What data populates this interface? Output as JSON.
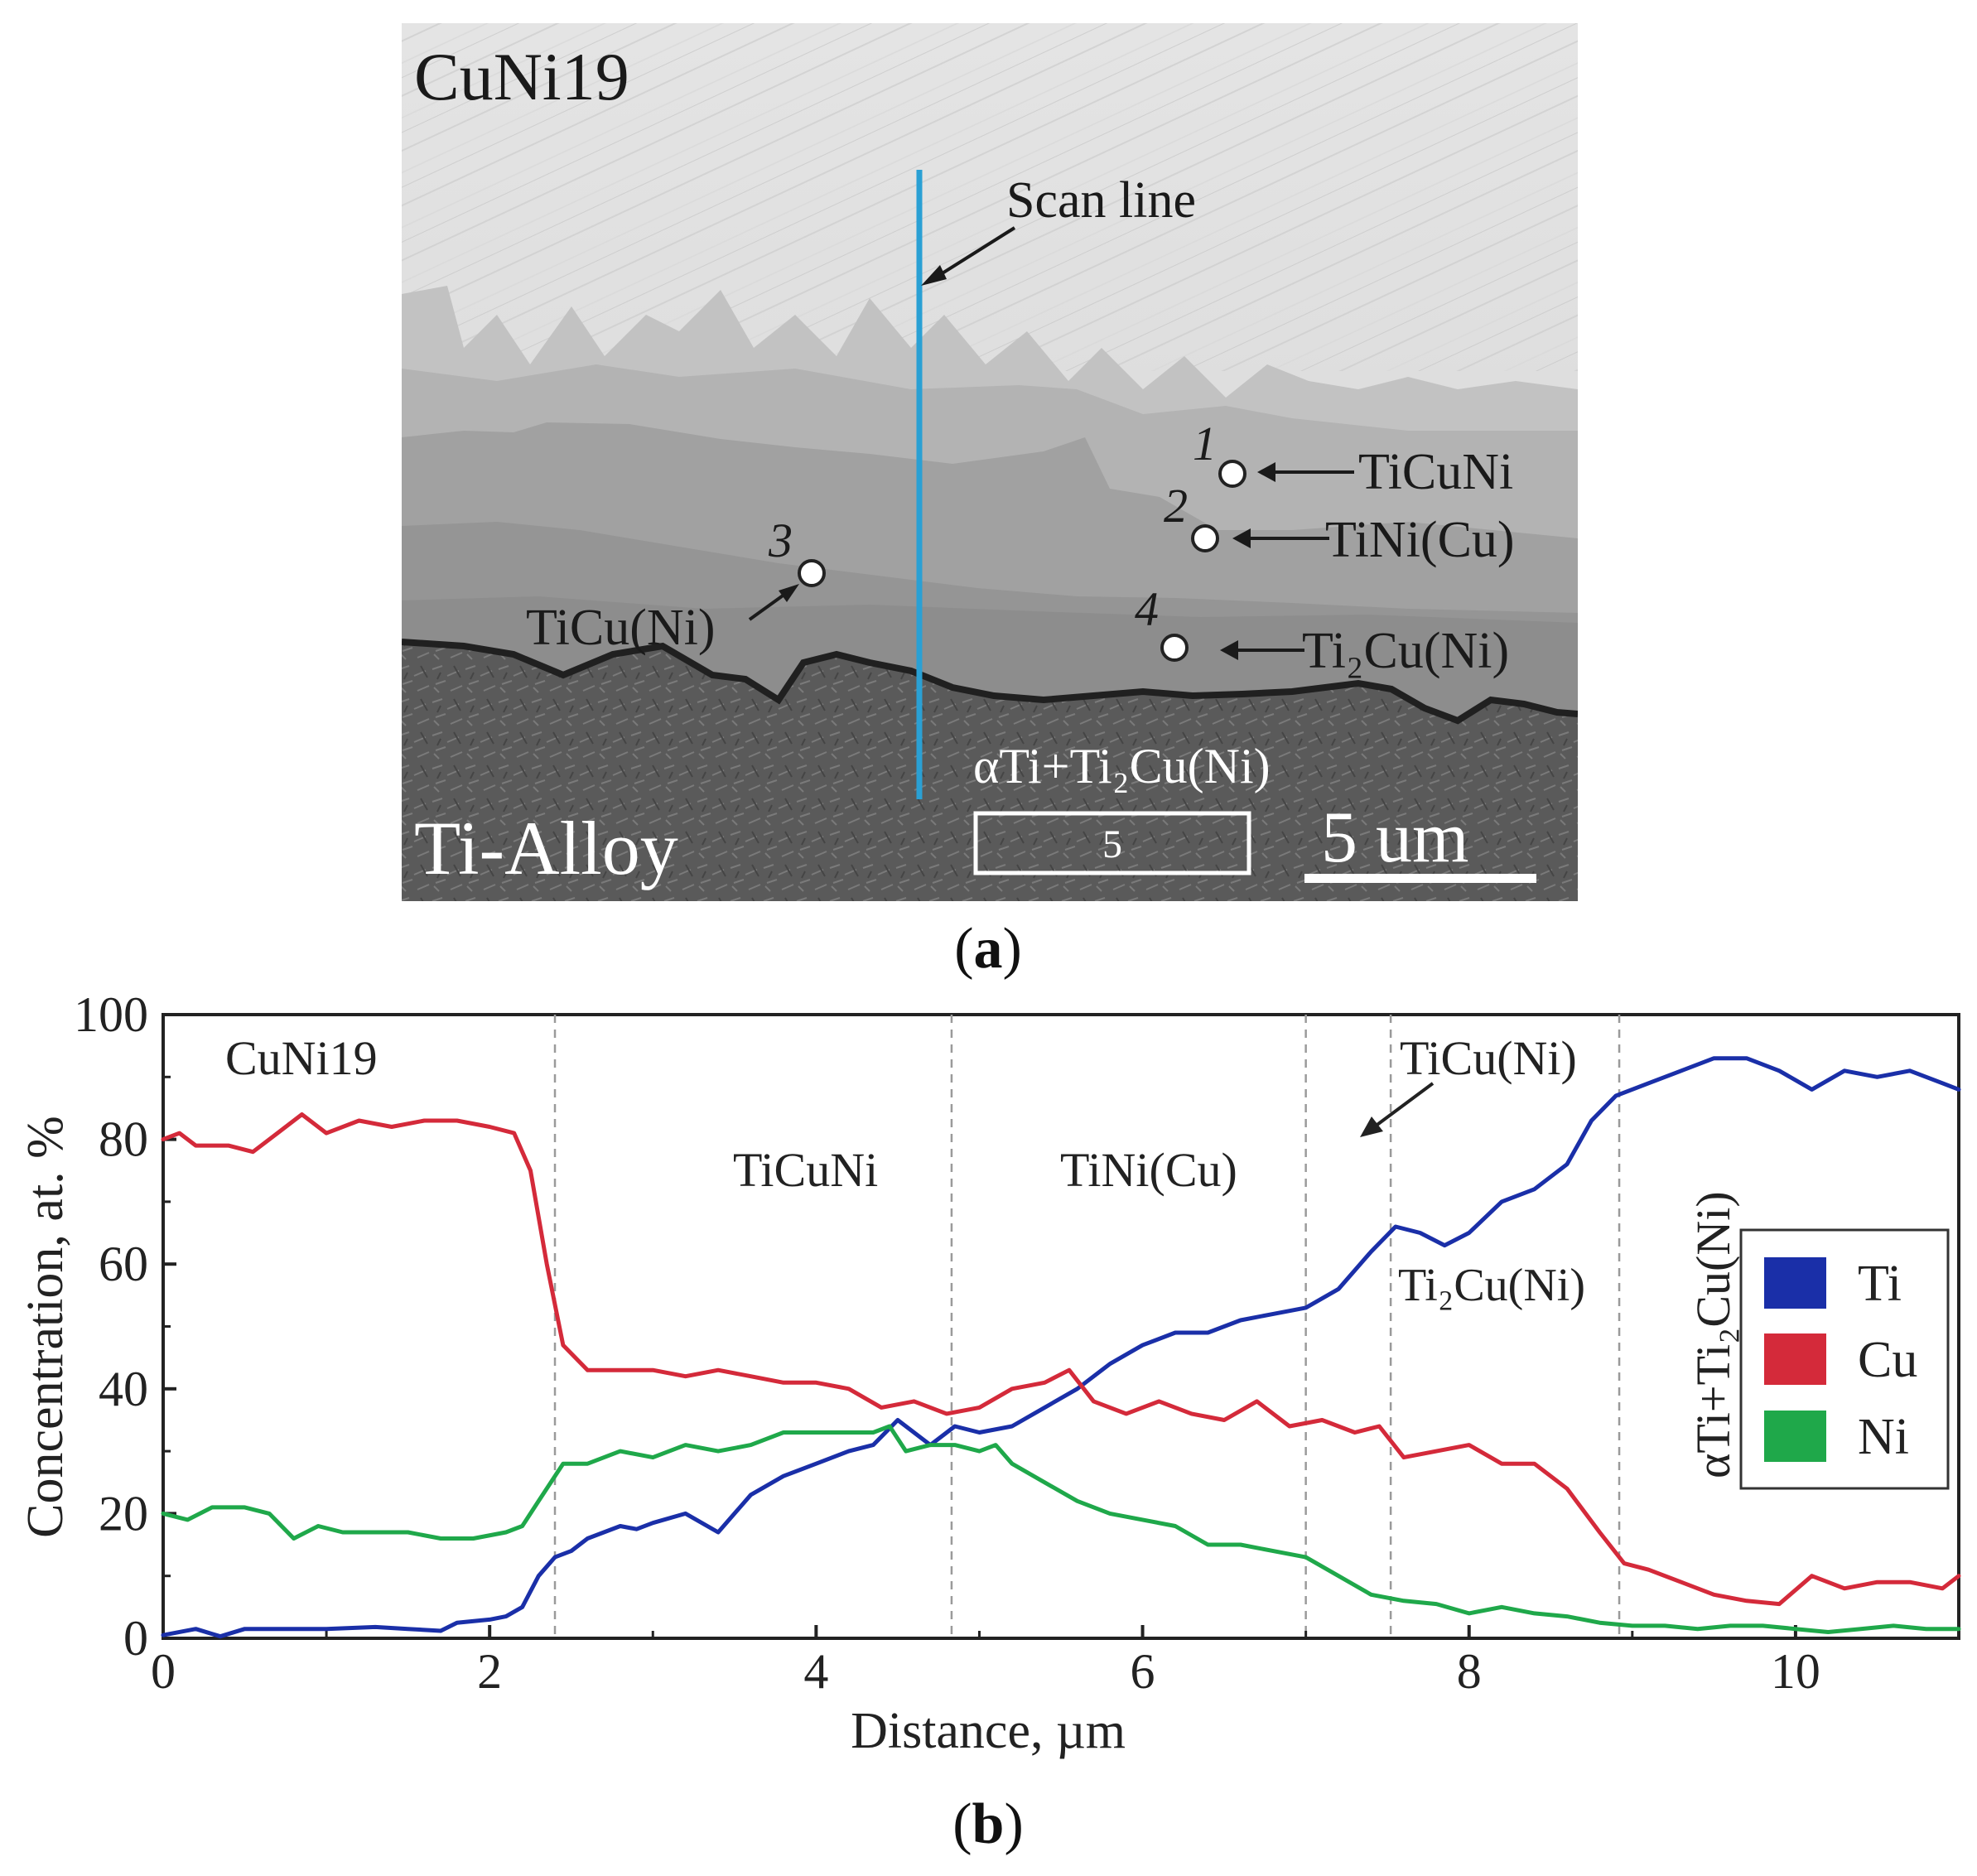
{
  "panel_a": {
    "caption": "a",
    "sample_top_label": "CuNi19",
    "sample_bottom_label": "Ti-Alloy",
    "scan_line_label": "Scan line",
    "points": [
      {
        "num": "1",
        "phase": "TiCuNi"
      },
      {
        "num": "2",
        "phase": "TiNi(Cu)"
      },
      {
        "num": "3",
        "phase": "TiCu(Ni)"
      },
      {
        "num": "4",
        "phase": "Ti₂Cu(Ni)"
      }
    ],
    "zone5_phase": "αTi+Ti₂Cu(Ni)",
    "zone5_num": "5",
    "scale_bar_label": "5 um",
    "colors": {
      "scan_line": "#2aa0d4",
      "marker": "#ffffff"
    }
  },
  "panel_b": {
    "caption": "b"
  },
  "chart_data": {
    "type": "line",
    "title": "",
    "xlabel": "Distance, µm",
    "ylabel": "Concentration, at. %",
    "xlim": [
      0,
      11
    ],
    "ylim": [
      0,
      100
    ],
    "xticks": [
      0,
      2,
      4,
      6,
      8,
      10
    ],
    "yticks": [
      0,
      20,
      40,
      60,
      80,
      100
    ],
    "boundaries": [
      2.4,
      4.83,
      7.0,
      7.52,
      8.92
    ],
    "region_labels": [
      "CuNi19",
      "TiCuNi",
      "TiNi(Cu)",
      "TiCu(Ni)",
      "Ti₂Cu(Ni)",
      "αTi+Ti₂Cu(Ni)"
    ],
    "legend": {
      "position": "right",
      "entries": [
        "Ti",
        "Cu",
        "Ni"
      ]
    },
    "series": [
      {
        "name": "Ti",
        "color": "#1a2fa8",
        "points": [
          [
            0,
            0.5
          ],
          [
            0.2,
            1.5
          ],
          [
            0.35,
            0.3
          ],
          [
            0.5,
            1.5
          ],
          [
            0.8,
            1.5
          ],
          [
            1.0,
            1.5
          ],
          [
            1.3,
            1.8
          ],
          [
            1.5,
            1.5
          ],
          [
            1.7,
            1.2
          ],
          [
            1.8,
            2.5
          ],
          [
            2.0,
            3.0
          ],
          [
            2.1,
            3.5
          ],
          [
            2.2,
            5
          ],
          [
            2.3,
            10
          ],
          [
            2.4,
            13
          ],
          [
            2.5,
            14
          ],
          [
            2.6,
            16
          ],
          [
            2.8,
            18
          ],
          [
            2.9,
            17.5
          ],
          [
            3.0,
            18.5
          ],
          [
            3.2,
            20
          ],
          [
            3.4,
            17
          ],
          [
            3.6,
            23
          ],
          [
            3.8,
            26
          ],
          [
            4.0,
            28
          ],
          [
            4.2,
            30
          ],
          [
            4.35,
            31
          ],
          [
            4.5,
            35
          ],
          [
            4.7,
            31
          ],
          [
            4.85,
            34
          ],
          [
            5.0,
            33
          ],
          [
            5.2,
            34
          ],
          [
            5.4,
            37
          ],
          [
            5.6,
            40
          ],
          [
            5.8,
            44
          ],
          [
            6.0,
            47
          ],
          [
            6.2,
            49
          ],
          [
            6.4,
            49
          ],
          [
            6.6,
            51
          ],
          [
            6.8,
            52
          ],
          [
            7.0,
            53
          ],
          [
            7.2,
            56
          ],
          [
            7.4,
            62
          ],
          [
            7.55,
            66
          ],
          [
            7.7,
            65
          ],
          [
            7.85,
            63
          ],
          [
            8.0,
            65
          ],
          [
            8.2,
            70
          ],
          [
            8.4,
            72
          ],
          [
            8.6,
            76
          ],
          [
            8.75,
            83
          ],
          [
            8.9,
            87
          ],
          [
            9.1,
            89
          ],
          [
            9.3,
            91
          ],
          [
            9.5,
            93
          ],
          [
            9.7,
            93
          ],
          [
            9.9,
            91
          ],
          [
            10.1,
            88
          ],
          [
            10.3,
            91
          ],
          [
            10.5,
            90
          ],
          [
            10.7,
            91
          ],
          [
            10.9,
            89
          ],
          [
            11.0,
            88
          ]
        ]
      },
      {
        "name": "Cu",
        "color": "#d42a3a",
        "points": [
          [
            0,
            80
          ],
          [
            0.1,
            81
          ],
          [
            0.2,
            79
          ],
          [
            0.4,
            79
          ],
          [
            0.55,
            78
          ],
          [
            0.7,
            81
          ],
          [
            0.85,
            84
          ],
          [
            1.0,
            81
          ],
          [
            1.2,
            83
          ],
          [
            1.4,
            82
          ],
          [
            1.6,
            83
          ],
          [
            1.8,
            83
          ],
          [
            2.0,
            82
          ],
          [
            2.15,
            81
          ],
          [
            2.25,
            75
          ],
          [
            2.35,
            60
          ],
          [
            2.45,
            47
          ],
          [
            2.6,
            43
          ],
          [
            2.8,
            43
          ],
          [
            3.0,
            43
          ],
          [
            3.2,
            42
          ],
          [
            3.4,
            43
          ],
          [
            3.6,
            42
          ],
          [
            3.8,
            41
          ],
          [
            4.0,
            41
          ],
          [
            4.2,
            40
          ],
          [
            4.4,
            37
          ],
          [
            4.6,
            38
          ],
          [
            4.8,
            36
          ],
          [
            5.0,
            37
          ],
          [
            5.2,
            40
          ],
          [
            5.4,
            41
          ],
          [
            5.55,
            43
          ],
          [
            5.7,
            38
          ],
          [
            5.9,
            36
          ],
          [
            6.1,
            38
          ],
          [
            6.3,
            36
          ],
          [
            6.5,
            35
          ],
          [
            6.7,
            38
          ],
          [
            6.9,
            34
          ],
          [
            7.1,
            35
          ],
          [
            7.3,
            33
          ],
          [
            7.45,
            34
          ],
          [
            7.6,
            29
          ],
          [
            7.8,
            30
          ],
          [
            8.0,
            31
          ],
          [
            8.2,
            28
          ],
          [
            8.4,
            28
          ],
          [
            8.6,
            24
          ],
          [
            8.8,
            17
          ],
          [
            8.95,
            12
          ],
          [
            9.1,
            11
          ],
          [
            9.3,
            9
          ],
          [
            9.5,
            7
          ],
          [
            9.7,
            6
          ],
          [
            9.9,
            5.5
          ],
          [
            10.1,
            10
          ],
          [
            10.3,
            8
          ],
          [
            10.5,
            9
          ],
          [
            10.7,
            9
          ],
          [
            10.9,
            8
          ],
          [
            11.0,
            10
          ]
        ]
      },
      {
        "name": "Ni",
        "color": "#1fa84a",
        "points": [
          [
            0,
            20
          ],
          [
            0.15,
            19
          ],
          [
            0.3,
            21
          ],
          [
            0.5,
            21
          ],
          [
            0.65,
            20
          ],
          [
            0.8,
            16
          ],
          [
            0.95,
            18
          ],
          [
            1.1,
            17
          ],
          [
            1.3,
            17
          ],
          [
            1.5,
            17
          ],
          [
            1.7,
            16
          ],
          [
            1.9,
            16
          ],
          [
            2.1,
            17
          ],
          [
            2.2,
            18
          ],
          [
            2.3,
            22
          ],
          [
            2.45,
            28
          ],
          [
            2.6,
            28
          ],
          [
            2.8,
            30
          ],
          [
            3.0,
            29
          ],
          [
            3.2,
            31
          ],
          [
            3.4,
            30
          ],
          [
            3.6,
            31
          ],
          [
            3.8,
            33
          ],
          [
            4.0,
            33
          ],
          [
            4.2,
            33
          ],
          [
            4.35,
            33
          ],
          [
            4.45,
            34
          ],
          [
            4.55,
            30
          ],
          [
            4.7,
            31
          ],
          [
            4.85,
            31
          ],
          [
            5.0,
            30
          ],
          [
            5.1,
            31
          ],
          [
            5.2,
            28
          ],
          [
            5.4,
            25
          ],
          [
            5.6,
            22
          ],
          [
            5.8,
            20
          ],
          [
            6.0,
            19
          ],
          [
            6.2,
            18
          ],
          [
            6.4,
            15
          ],
          [
            6.6,
            15
          ],
          [
            6.8,
            14
          ],
          [
            7.0,
            13
          ],
          [
            7.2,
            10
          ],
          [
            7.4,
            7
          ],
          [
            7.6,
            6
          ],
          [
            7.8,
            5.5
          ],
          [
            8.0,
            4
          ],
          [
            8.2,
            5
          ],
          [
            8.4,
            4
          ],
          [
            8.6,
            3.5
          ],
          [
            8.8,
            2.5
          ],
          [
            9.0,
            2
          ],
          [
            9.2,
            2
          ],
          [
            9.4,
            1.5
          ],
          [
            9.6,
            2
          ],
          [
            9.8,
            2
          ],
          [
            10.0,
            1.5
          ],
          [
            10.2,
            1
          ],
          [
            10.4,
            1.5
          ],
          [
            10.6,
            2
          ],
          [
            10.8,
            1.5
          ],
          [
            11.0,
            1.5
          ]
        ]
      }
    ]
  }
}
